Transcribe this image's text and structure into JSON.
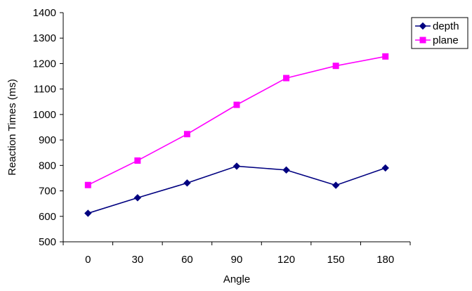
{
  "chart_data": {
    "type": "line",
    "xlabel": "Angle",
    "ylabel": "Reaction Times (ms)",
    "categories": [
      "0",
      "30",
      "60",
      "90",
      "120",
      "150",
      "180"
    ],
    "ylim": [
      500,
      1400
    ],
    "yticks": [
      500,
      600,
      700,
      800,
      900,
      1000,
      1100,
      1200,
      1300,
      1400
    ],
    "grid": false,
    "legend_position": "top-right",
    "series": [
      {
        "name": "depth",
        "values": [
          612,
          673,
          731,
          797,
          782,
          722,
          790
        ],
        "color": "#000080",
        "marker": "diamond"
      },
      {
        "name": "plane",
        "values": [
          723,
          819,
          923,
          1038,
          1143,
          1191,
          1228
        ],
        "color": "#FF00FF",
        "marker": "square"
      }
    ]
  }
}
